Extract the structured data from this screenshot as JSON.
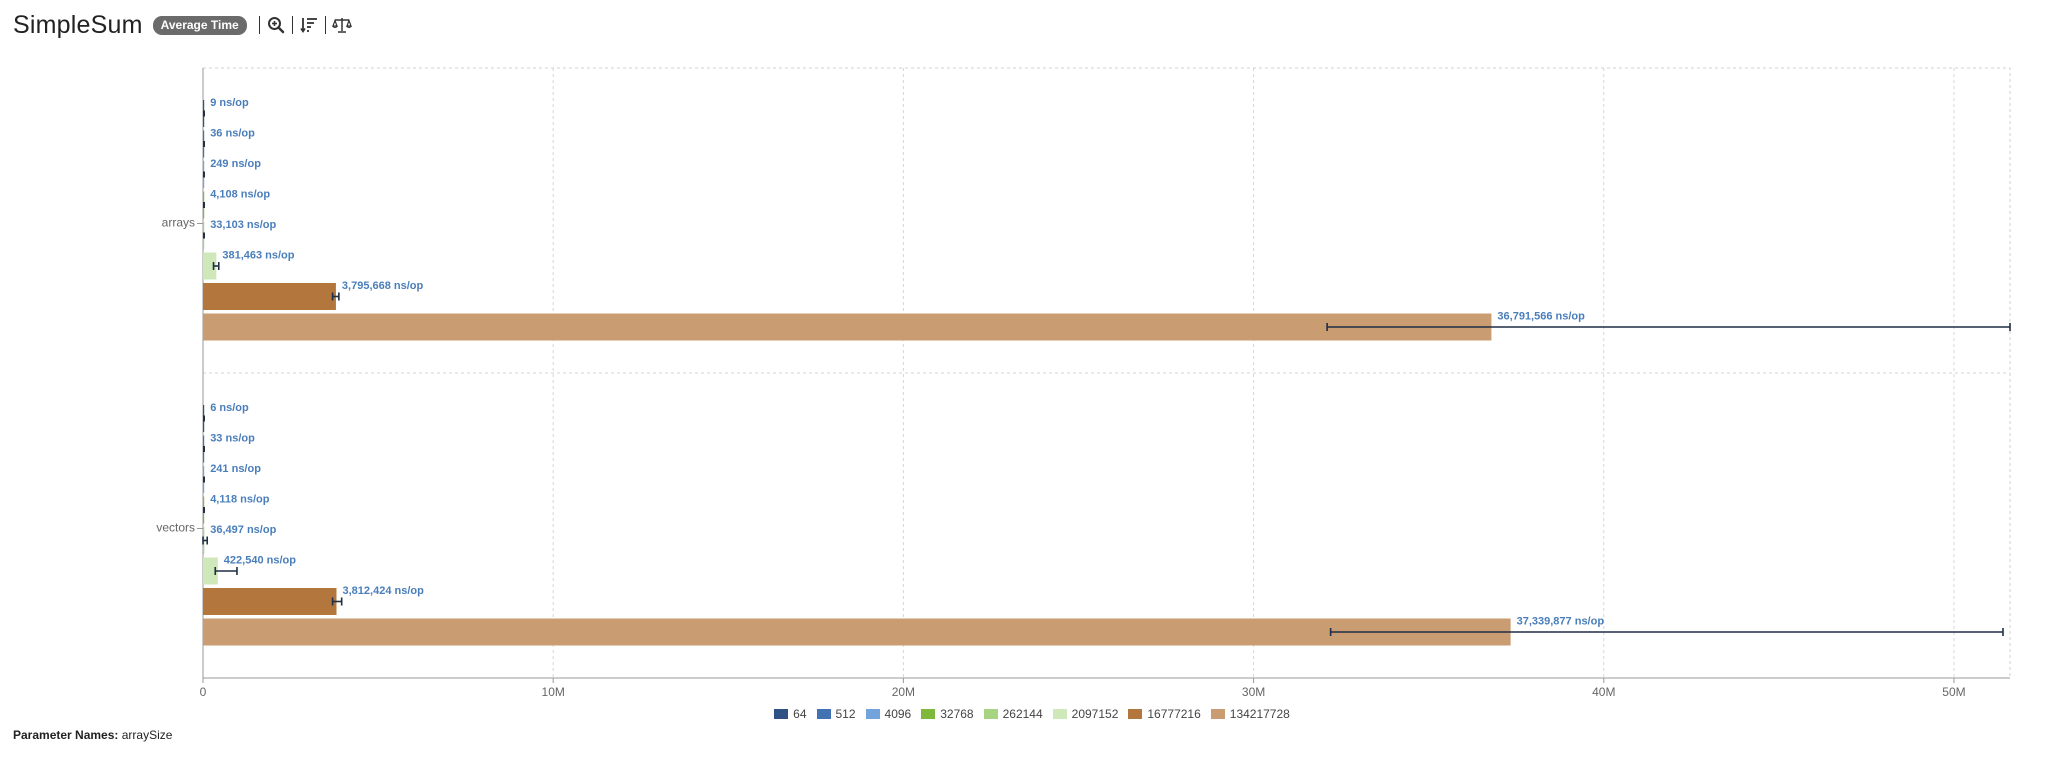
{
  "header": {
    "title": "SimpleSum",
    "mode_badge": "Average Time",
    "tools": [
      "zoom-icon",
      "sort-icon",
      "balance-icon"
    ]
  },
  "footer": {
    "param_label": "Parameter Names:",
    "param_value": "arraySize"
  },
  "chart_data": {
    "type": "bar",
    "orientation": "horizontal",
    "categories": [
      "arrays",
      "vectors"
    ],
    "unit": "ns/op",
    "xlim": [
      0,
      51600000
    ],
    "xticks": [
      0,
      10000000,
      20000000,
      30000000,
      40000000,
      50000000
    ],
    "xtick_labels": [
      "0",
      "10M",
      "20M",
      "30M",
      "40M",
      "50M"
    ],
    "grid": true,
    "legend_position": "bottom",
    "series": [
      {
        "name": "64",
        "color": "#2e5283",
        "values": [
          9,
          6
        ],
        "labels": [
          "9 ns/op",
          "6 ns/op"
        ],
        "errors": [
          null,
          null
        ]
      },
      {
        "name": "512",
        "color": "#4372b3",
        "values": [
          36,
          33
        ],
        "labels": [
          "36 ns/op",
          "33 ns/op"
        ],
        "errors": [
          null,
          null
        ]
      },
      {
        "name": "4096",
        "color": "#74a3dc",
        "values": [
          249,
          241
        ],
        "labels": [
          "249 ns/op",
          "241 ns/op"
        ],
        "errors": [
          null,
          null
        ]
      },
      {
        "name": "32768",
        "color": "#7fb93b",
        "values": [
          4108,
          4118
        ],
        "labels": [
          "4,108 ns/op",
          "4,118 ns/op"
        ],
        "errors": [
          null,
          null
        ]
      },
      {
        "name": "262144",
        "color": "#a6d480",
        "values": [
          33103,
          36497
        ],
        "labels": [
          "33,103 ns/op",
          "36,497 ns/op"
        ],
        "errors": [
          null,
          [
            0,
            120000
          ]
        ]
      },
      {
        "name": "2097152",
        "color": "#cfe8b9",
        "values": [
          381463,
          422540
        ],
        "labels": [
          "381,463 ns/op",
          "422,540 ns/op"
        ],
        "errors": [
          [
            300000,
            450000
          ],
          [
            350000,
            970000
          ]
        ]
      },
      {
        "name": "16777216",
        "color": "#b3763c",
        "values": [
          3795668,
          3812424
        ],
        "labels": [
          "3,795,668 ns/op",
          "3,812,424 ns/op"
        ],
        "errors": [
          [
            3700000,
            3880000
          ],
          [
            3700000,
            3960000
          ]
        ]
      },
      {
        "name": "134217728",
        "color": "#c99c72",
        "values": [
          36791566,
          37339877
        ],
        "labels": [
          "36,791,566 ns/op",
          "37,339,877 ns/op"
        ],
        "errors": [
          [
            32100000,
            51600000
          ],
          [
            32200000,
            51400000
          ]
        ]
      }
    ]
  }
}
